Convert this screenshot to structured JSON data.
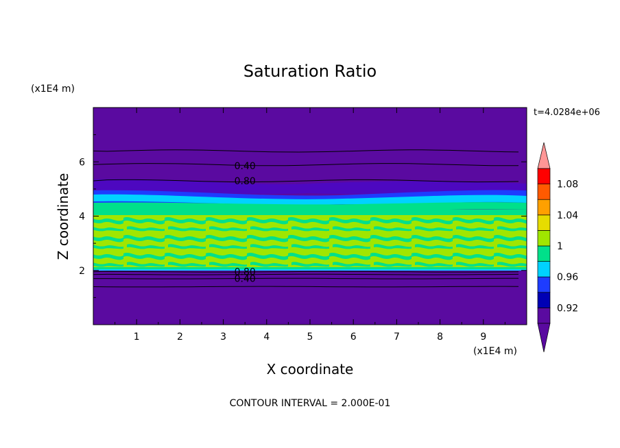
{
  "chart_data": {
    "type": "heatmap",
    "title": "Saturation Ratio",
    "xlabel": "X coordinate",
    "ylabel": "Z coordinate",
    "x_unit": "(x1E4 m)",
    "y_unit": "(x1E4 m)",
    "time_label": "t=4.0284e+06",
    "footer": "CONTOUR INTERVAL = 2.000E-01",
    "xlim": [
      0,
      10
    ],
    "ylim": [
      0,
      8
    ],
    "x_ticks": [
      "1",
      "2",
      "3",
      "4",
      "5",
      "6",
      "7",
      "8",
      "9"
    ],
    "y_ticks": [
      "2",
      "4",
      "6"
    ],
    "colorbar": {
      "levels": [
        0.9,
        0.92,
        0.94,
        0.96,
        0.98,
        1.0,
        1.02,
        1.04,
        1.06,
        1.08,
        1.1
      ],
      "labels": [
        "0.92",
        "0.96",
        "1",
        "1.04",
        "1.08"
      ],
      "colors": [
        "#5a0aa0",
        "#0000b4",
        "#1e3cff",
        "#00d2ff",
        "#00e08a",
        "#a0e600",
        "#e6dc00",
        "#ffa000",
        "#ff5a00",
        "#ff0000"
      ],
      "under_color": "#5a0aa0",
      "over_color": "#ff9696"
    },
    "contour_labels": [
      {
        "text": "0.40",
        "x": 3.5,
        "z": 5.85
      },
      {
        "text": "0.80",
        "x": 3.5,
        "z": 5.3
      },
      {
        "text": "0.80",
        "x": 3.5,
        "z": 1.95
      },
      {
        "text": "0.40",
        "x": 3.5,
        "z": 1.7
      }
    ],
    "contour_lines_z": [
      6.4,
      5.9,
      5.3,
      1.95,
      1.85,
      1.7,
      1.4
    ]
  }
}
